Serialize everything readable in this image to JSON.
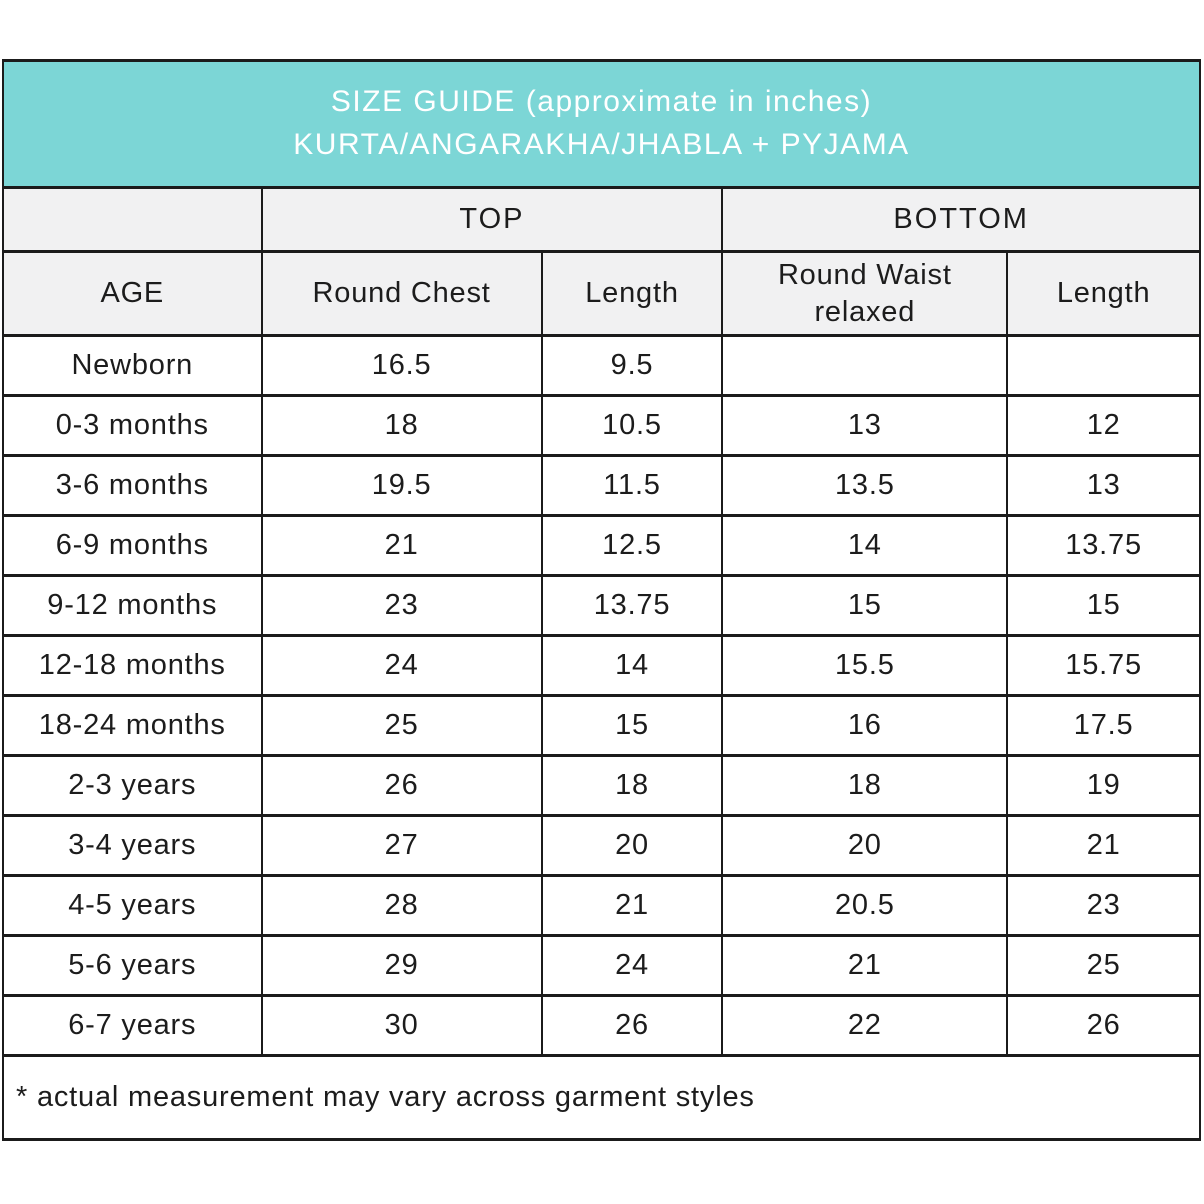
{
  "header": {
    "line1": "SIZE GUIDE (approximate in inches)",
    "line2": "KURTA/ANGARAKHA/JHABLA + PYJAMA"
  },
  "group_headers": {
    "top": "TOP",
    "bottom": "BOTTOM"
  },
  "columns": [
    "AGE",
    "Round Chest",
    "Length",
    "Round Waist relaxed",
    "Length"
  ],
  "rows": [
    {
      "age": "Newborn",
      "cells": [
        "16.5",
        "9.5",
        "",
        ""
      ]
    },
    {
      "age": "0-3 months",
      "cells": [
        "18",
        "10.5",
        "13",
        "12"
      ]
    },
    {
      "age": "3-6 months",
      "cells": [
        "19.5",
        "11.5",
        "13.5",
        "13"
      ]
    },
    {
      "age": "6-9 months",
      "cells": [
        "21",
        "12.5",
        "14",
        "13.75"
      ]
    },
    {
      "age": "9-12 months",
      "cells": [
        "23",
        "13.75",
        "15",
        "15"
      ]
    },
    {
      "age": "12-18 months",
      "cells": [
        "24",
        "14",
        "15.5",
        "15.75"
      ]
    },
    {
      "age": "18-24 months",
      "cells": [
        "25",
        "15",
        "16",
        "17.5"
      ]
    },
    {
      "age": "2-3 years",
      "cells": [
        "26",
        "18",
        "18",
        "19"
      ]
    },
    {
      "age": "3-4 years",
      "cells": [
        "27",
        "20",
        "20",
        "21"
      ]
    },
    {
      "age": "4-5 years",
      "cells": [
        "28",
        "21",
        "20.5",
        "23"
      ]
    },
    {
      "age": "5-6 years",
      "cells": [
        "29",
        "24",
        "21",
        "25"
      ]
    },
    {
      "age": "6-7 years",
      "cells": [
        "30",
        "26",
        "22",
        "26"
      ]
    }
  ],
  "footnote": "* actual measurement may vary across garment styles",
  "colors": {
    "title_bg": "#7cd6d6",
    "title_text": "#ffffff",
    "subheader_bg": "#f1f1f2",
    "border": "#1b1b1b",
    "text": "#1c1c1c"
  }
}
